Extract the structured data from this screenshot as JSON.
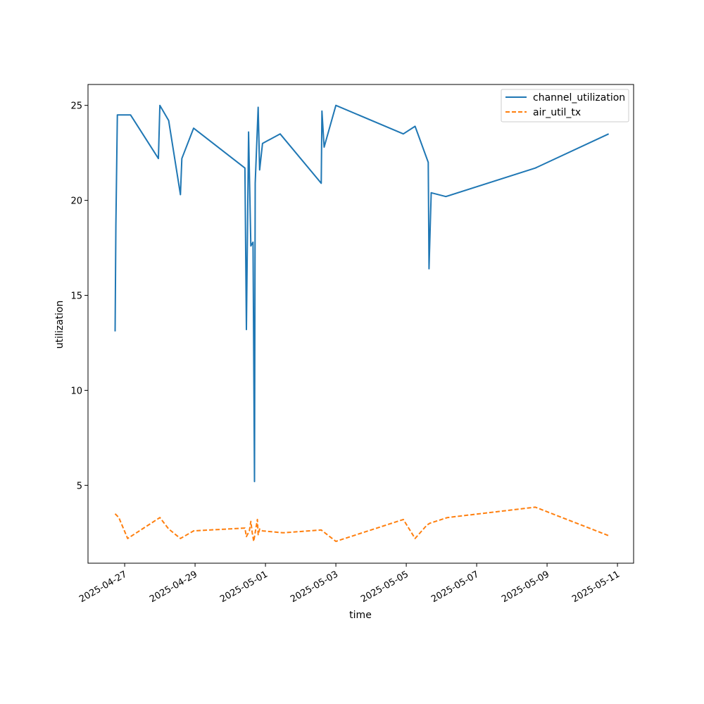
{
  "chart_data": {
    "type": "line",
    "title": "",
    "xlabel": "time",
    "ylabel": "utilization",
    "xlim": [
      "2025-04-25T23:00",
      "2025-05-11T11:00"
    ],
    "ylim": [
      0.9,
      26.1
    ],
    "x_ticks": [
      "2025-04-27",
      "2025-04-29",
      "2025-05-01",
      "2025-05-03",
      "2025-05-05",
      "2025-05-07",
      "2025-05-09",
      "2025-05-11"
    ],
    "y_ticks": [
      5,
      10,
      15,
      20,
      25
    ],
    "grid": false,
    "legend": "top-right",
    "series": [
      {
        "name": "channel_utilization",
        "color": "#1f77b4",
        "style": "solid",
        "x": [
          "2025-04-26T17:30",
          "2025-04-26T18:00",
          "2025-04-26T19:00",
          "2025-04-27T04:00",
          "2025-04-27T23:00",
          "2025-04-28T00:00",
          "2025-04-28T06:00",
          "2025-04-28T14:00",
          "2025-04-28T15:00",
          "2025-04-28T23:00",
          "2025-04-30T10:00",
          "2025-04-30T11:00",
          "2025-04-30T12:30",
          "2025-04-30T14:00",
          "2025-04-30T15:30",
          "2025-04-30T16:30",
          "2025-04-30T17:00",
          "2025-04-30T19:00",
          "2025-04-30T20:00",
          "2025-04-30T22:00",
          "2025-05-01T10:00",
          "2025-05-02T14:00",
          "2025-05-02T14:30",
          "2025-05-02T16:00",
          "2025-05-03T00:00",
          "2025-05-04T22:00",
          "2025-05-05T06:00",
          "2025-05-05T15:00",
          "2025-05-05T15:30",
          "2025-05-05T17:00",
          "2025-05-06T03:00",
          "2025-05-08T16:00",
          "2025-05-10T18:00"
        ],
        "y": [
          13.1,
          18.7,
          24.5,
          24.5,
          22.2,
          25.0,
          24.2,
          20.3,
          22.2,
          23.8,
          21.7,
          13.2,
          23.6,
          17.6,
          17.8,
          5.2,
          20.9,
          24.9,
          21.6,
          23.0,
          23.5,
          20.9,
          24.7,
          22.8,
          25.0,
          23.5,
          23.9,
          22.0,
          16.4,
          20.4,
          20.2,
          21.7,
          23.5
        ]
      },
      {
        "name": "air_util_tx",
        "color": "#ff7f0e",
        "style": "dashed",
        "x": [
          "2025-04-26T17:30",
          "2025-04-26T20:00",
          "2025-04-27T02:00",
          "2025-04-28T00:00",
          "2025-04-28T06:00",
          "2025-04-28T14:00",
          "2025-04-28T23:00",
          "2025-04-30T10:00",
          "2025-04-30T11:00",
          "2025-04-30T13:00",
          "2025-04-30T14:00",
          "2025-04-30T15:00",
          "2025-04-30T16:00",
          "2025-04-30T18:30",
          "2025-04-30T19:00",
          "2025-04-30T20:00",
          "2025-04-30T22:00",
          "2025-05-01T12:00",
          "2025-05-02T14:00",
          "2025-05-03T00:00",
          "2025-05-04T22:00",
          "2025-05-05T06:00",
          "2025-05-05T14:00",
          "2025-05-05T16:00",
          "2025-05-06T04:00",
          "2025-05-08T16:00",
          "2025-05-10T18:00"
        ],
        "y": [
          3.5,
          3.3,
          2.2,
          3.3,
          2.7,
          2.2,
          2.6,
          2.75,
          2.3,
          2.6,
          3.1,
          2.5,
          2.05,
          3.2,
          2.4,
          2.7,
          2.6,
          2.5,
          2.65,
          2.05,
          3.2,
          2.2,
          2.9,
          3.0,
          3.3,
          3.85,
          2.35
        ]
      }
    ]
  }
}
